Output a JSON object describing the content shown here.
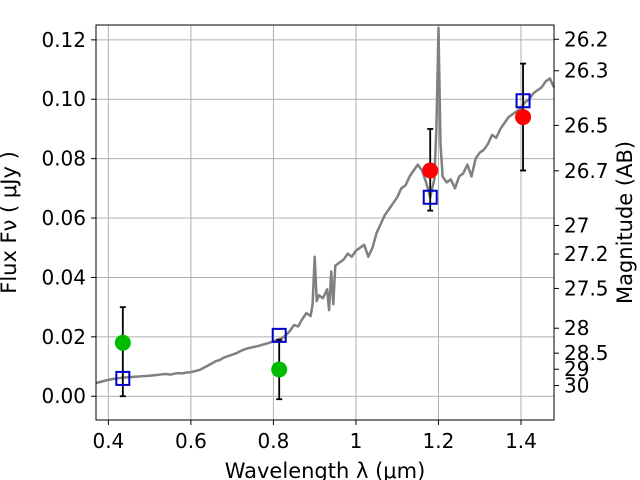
{
  "chart_data": {
    "type": "scatter",
    "title": "",
    "xlabel": "Wavelength  λ (μm)",
    "ylabel": "Flux  Fν  ( μJy )",
    "ylabel_right": "Magnitude (AB)",
    "xlim": [
      0.37,
      1.48
    ],
    "ylim": [
      -0.008,
      0.125
    ],
    "grid": true,
    "x_ticks": [
      0.4,
      0.6,
      0.8,
      1.0,
      1.2,
      1.4
    ],
    "x_tick_labels": [
      "0.4",
      "0.6",
      "0.8",
      "1",
      "1.2",
      "1.4"
    ],
    "y_ticks": [
      0.0,
      0.02,
      0.04,
      0.06,
      0.08,
      0.1,
      0.12
    ],
    "y_tick_labels": [
      "0.00",
      "0.02",
      "0.04",
      "0.06",
      "0.08",
      "0.10",
      "0.12"
    ],
    "right_ticks": [
      {
        "label": "26.2",
        "flux": 0.1202
      },
      {
        "label": "26.3",
        "flux": 0.1096
      },
      {
        "label": "26.5",
        "flux": 0.0912
      },
      {
        "label": "26.7",
        "flux": 0.0759
      },
      {
        "label": "27",
        "flux": 0.0575
      },
      {
        "label": "27.2",
        "flux": 0.0479
      },
      {
        "label": "27.5",
        "flux": 0.0363
      },
      {
        "label": "28",
        "flux": 0.0229
      },
      {
        "label": "28.5",
        "flux": 0.0145
      },
      {
        "label": "29",
        "flux": 0.0091
      },
      {
        "label": "30",
        "flux": 0.0036
      }
    ],
    "colors": {
      "model": "#808080",
      "model_phot": "#0000cc",
      "obs_optical": "#00bb00",
      "obs_nir": "#ff0000",
      "errorbar": "#000000",
      "grid": "#b0b0b0"
    },
    "series": [
      {
        "kind": "model_spectrum",
        "x": [
          0.37,
          0.38,
          0.39,
          0.4,
          0.41,
          0.42,
          0.43,
          0.44,
          0.45,
          0.46,
          0.47,
          0.48,
          0.49,
          0.5,
          0.51,
          0.52,
          0.53,
          0.54,
          0.55,
          0.56,
          0.57,
          0.58,
          0.59,
          0.6,
          0.62,
          0.63,
          0.64,
          0.65,
          0.66,
          0.67,
          0.68,
          0.7,
          0.71,
          0.72,
          0.73,
          0.74,
          0.75,
          0.76,
          0.77,
          0.78,
          0.79,
          0.8,
          0.81,
          0.82,
          0.83,
          0.84,
          0.85,
          0.86,
          0.87,
          0.88,
          0.89,
          0.895,
          0.9,
          0.905,
          0.91,
          0.92,
          0.93,
          0.935,
          0.94,
          0.945,
          0.95,
          0.96,
          0.97,
          0.98,
          0.99,
          1.0,
          1.01,
          1.02,
          1.03,
          1.04,
          1.05,
          1.06,
          1.07,
          1.08,
          1.09,
          1.1,
          1.11,
          1.12,
          1.13,
          1.14,
          1.15,
          1.16,
          1.17,
          1.18,
          1.19,
          1.195,
          1.2,
          1.205,
          1.21,
          1.22,
          1.23,
          1.24,
          1.25,
          1.26,
          1.27,
          1.28,
          1.29,
          1.3,
          1.31,
          1.32,
          1.33,
          1.34,
          1.35,
          1.36,
          1.37,
          1.38,
          1.39,
          1.4,
          1.41,
          1.42,
          1.43,
          1.44,
          1.45,
          1.46,
          1.47,
          1.48
        ],
        "y": [
          0.0045,
          0.0048,
          0.0052,
          0.0055,
          0.0058,
          0.006,
          0.0062,
          0.0063,
          0.0064,
          0.0065,
          0.0066,
          0.0067,
          0.0068,
          0.0069,
          0.0071,
          0.0072,
          0.0074,
          0.0075,
          0.0073,
          0.0076,
          0.0078,
          0.0077,
          0.008,
          0.0081,
          0.0088,
          0.0095,
          0.0102,
          0.011,
          0.0118,
          0.0122,
          0.013,
          0.014,
          0.0145,
          0.0152,
          0.0158,
          0.0162,
          0.0165,
          0.0168,
          0.0172,
          0.0176,
          0.018,
          0.0185,
          0.019,
          0.0195,
          0.0205,
          0.022,
          0.024,
          0.0235,
          0.026,
          0.028,
          0.027,
          0.031,
          0.047,
          0.032,
          0.034,
          0.033,
          0.036,
          0.029,
          0.042,
          0.031,
          0.044,
          0.045,
          0.046,
          0.048,
          0.047,
          0.049,
          0.05,
          0.051,
          0.047,
          0.05,
          0.055,
          0.058,
          0.061,
          0.063,
          0.065,
          0.067,
          0.07,
          0.071,
          0.074,
          0.076,
          0.078,
          0.076,
          0.072,
          0.067,
          0.073,
          0.09,
          0.124,
          0.085,
          0.074,
          0.072,
          0.073,
          0.07,
          0.074,
          0.075,
          0.078,
          0.074,
          0.08,
          0.082,
          0.083,
          0.085,
          0.088,
          0.087,
          0.09,
          0.092,
          0.094,
          0.095,
          0.096,
          0.097,
          0.099,
          0.1,
          0.102,
          0.103,
          0.104,
          0.106,
          0.107,
          0.104
        ]
      },
      {
        "kind": "model_photometry",
        "x": [
          0.435,
          0.814,
          1.18,
          1.405
        ],
        "y": [
          0.006,
          0.0205,
          0.067,
          0.0995
        ]
      },
      {
        "kind": "observed_optical",
        "x": [
          0.435,
          0.814
        ],
        "y": [
          0.018,
          0.009
        ],
        "yerr_low": [
          0.018,
          0.01
        ],
        "yerr_high": [
          0.012,
          0.01
        ]
      },
      {
        "kind": "observed_nir",
        "x": [
          1.18,
          1.405
        ],
        "y": [
          0.076,
          0.094
        ],
        "yerr_low": [
          0.0135,
          0.018
        ],
        "yerr_high": [
          0.014,
          0.018
        ]
      }
    ]
  }
}
